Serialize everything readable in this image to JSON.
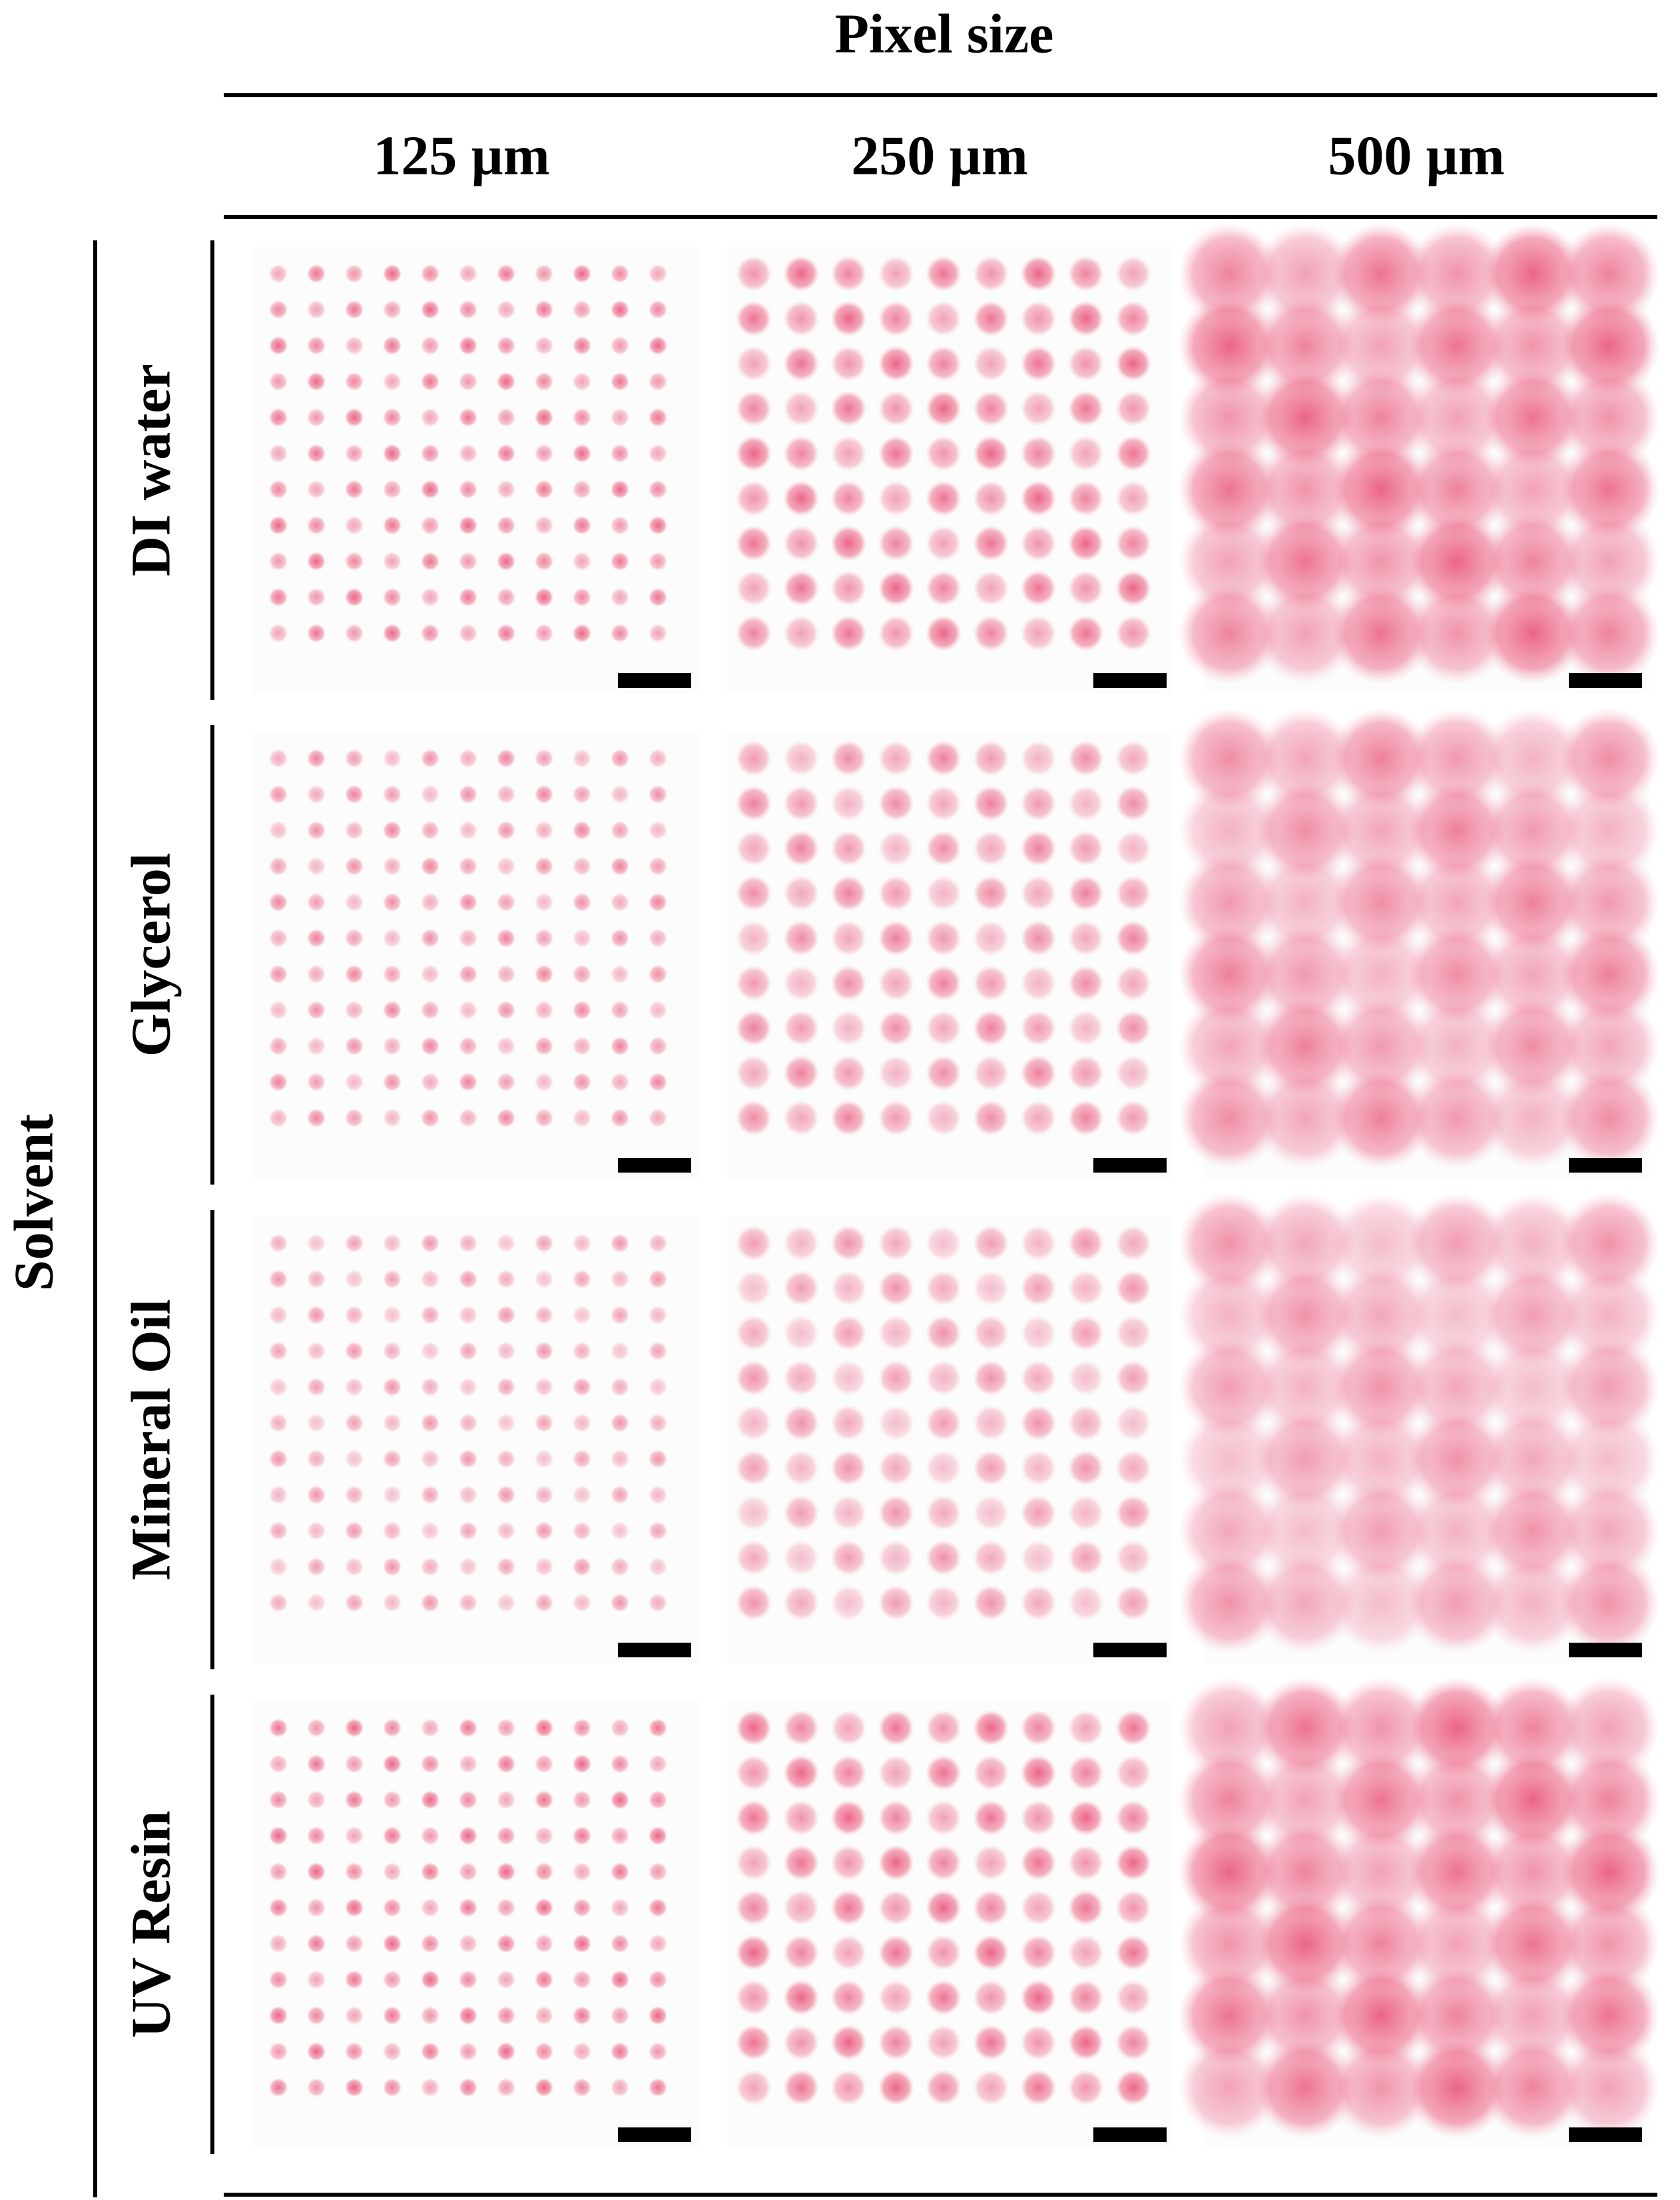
{
  "header": {
    "title": "Pixel size",
    "columns": [
      "125 µm",
      "250 µm",
      "500 µm"
    ]
  },
  "side": {
    "title": "Solvent",
    "rows": [
      "DI water",
      "Glycerol",
      "Mineral Oil",
      "UV Resin"
    ]
  }
}
